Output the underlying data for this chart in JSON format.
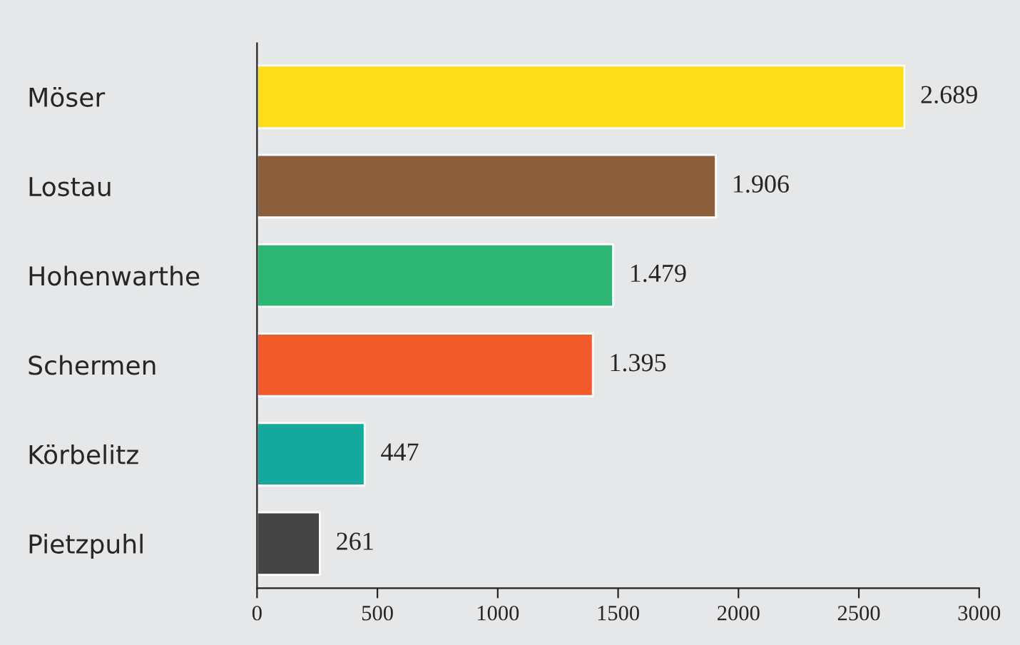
{
  "chart_data": {
    "type": "bar",
    "orientation": "horizontal",
    "categories": [
      "Möser",
      "Lostau",
      "Hohenwarthe",
      "Schermen",
      "Körbelitz",
      "Pietzpuhl"
    ],
    "values": [
      2689,
      1906,
      1479,
      1395,
      447,
      261
    ],
    "colors": [
      "#fddc1a",
      "#8b5e3c",
      "#2db673",
      "#f15a2b",
      "#14a99c",
      "#444444"
    ],
    "value_labels": [
      "2.689",
      "1.906",
      "1.479",
      "1.395",
      "447",
      "261"
    ],
    "xlim": [
      0,
      3000
    ],
    "xticks": [
      0,
      500,
      1000,
      1500,
      2000,
      2500,
      3000
    ],
    "grid": false,
    "legend": false
  }
}
